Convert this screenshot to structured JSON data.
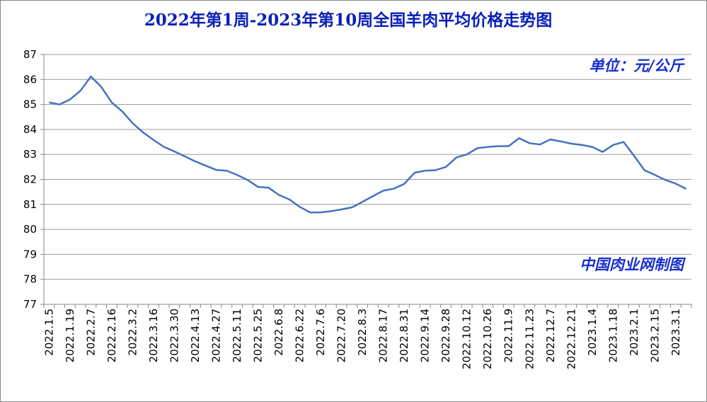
{
  "chart_data": {
    "type": "line",
    "title": "2022年第1周-2023年第10周全国羊肉平均价格走势图",
    "annotations": [
      "单位：元/公斤",
      "中国肉业网制图"
    ],
    "categories": [
      "2022.1.5",
      null,
      "2022.1.19",
      null,
      "2022.2.7",
      null,
      "2022.2.16",
      null,
      "2022.3.2",
      null,
      "2022.3.16",
      null,
      "2022.3.30",
      null,
      "2022.4.13",
      null,
      "2022.4.27",
      null,
      "2022.5.11",
      null,
      "2022.5.25",
      null,
      "2022.6.8",
      null,
      "2022.6.22",
      null,
      "2022.7.6",
      null,
      "2022.7.20",
      null,
      "2022.8.3",
      null,
      "2022.8.17",
      null,
      "2022.8.31",
      null,
      "2022.9.14",
      null,
      "2022.9.28",
      null,
      "2022.10.12",
      null,
      "2022.10.26",
      null,
      "2022.11.9",
      null,
      "2022.11.23",
      null,
      "2022.12.7",
      null,
      "2022.12.21",
      null,
      "2023.1.4",
      null,
      "2023.1.18",
      null,
      "2023.2.1",
      null,
      "2023.2.15",
      null,
      "2023.3.1",
      null
    ],
    "series": [
      {
        "name": "全国羊肉平均价格",
        "color": "#4472c4",
        "values": [
          85.08,
          85.0,
          85.2,
          85.55,
          86.12,
          85.7,
          85.08,
          84.72,
          84.25,
          83.88,
          83.58,
          83.3,
          83.12,
          82.92,
          82.72,
          82.55,
          82.38,
          82.35,
          82.18,
          81.98,
          81.7,
          81.67,
          81.38,
          81.2,
          80.9,
          80.68,
          80.68,
          80.73,
          80.8,
          80.88,
          81.1,
          81.33,
          81.55,
          81.63,
          81.82,
          82.27,
          82.35,
          82.37,
          82.5,
          82.88,
          83.0,
          83.25,
          83.3,
          83.33,
          83.33,
          83.65,
          83.45,
          83.4,
          83.6,
          83.52,
          83.43,
          83.38,
          83.3,
          83.1,
          83.38,
          83.5,
          82.95,
          82.37,
          82.18,
          81.98,
          81.83,
          81.62
        ]
      }
    ],
    "ylim": [
      77,
      87
    ],
    "yticks": [
      77,
      78,
      79,
      80,
      81,
      82,
      83,
      84,
      85,
      86,
      87
    ],
    "grid": true
  }
}
